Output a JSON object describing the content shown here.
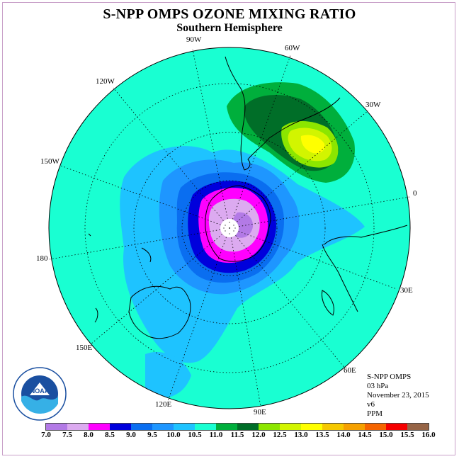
{
  "title": "S-NPP OMPS OZONE MIXING RATIO",
  "subtitle": "Southern Hemisphere",
  "longitude_labels": {
    "w90": "90W",
    "w60": "60W",
    "w30": "30W",
    "zero": "0",
    "e30": "30E",
    "e60": "60E",
    "e90": "90E",
    "e120": "120E",
    "e150": "150E",
    "lon180": "180",
    "w150": "150W",
    "w120": "120W"
  },
  "info": {
    "instrument": "S-NPP OMPS",
    "level": "03 hPa",
    "date": "November 23, 2015",
    "version": "v6",
    "units": "PPM"
  },
  "logo_text": "NOAA",
  "colorbar": {
    "ticks": [
      "7.0",
      "7.5",
      "8.0",
      "8.5",
      "9.0",
      "9.5",
      "10.0",
      "10.5",
      "11.0",
      "11.5",
      "12.0",
      "12.5",
      "13.0",
      "13.5",
      "14.0",
      "14.5",
      "15.0",
      "15.5",
      "16.0"
    ],
    "colors": [
      "#b37ae6",
      "#dcaaf0",
      "#ff00ff",
      "#0000dc",
      "#0a6ef0",
      "#1e96ff",
      "#1ec3ff",
      "#19ffd2",
      "#00af3c",
      "#006e28",
      "#8ce600",
      "#d2f500",
      "#ffff00",
      "#f5c800",
      "#f5a000",
      "#f56400",
      "#f50000",
      "#966446"
    ]
  },
  "map_colors": {
    "background_field": "#19ffd2",
    "coast": "#000000",
    "grid": "#000000"
  }
}
